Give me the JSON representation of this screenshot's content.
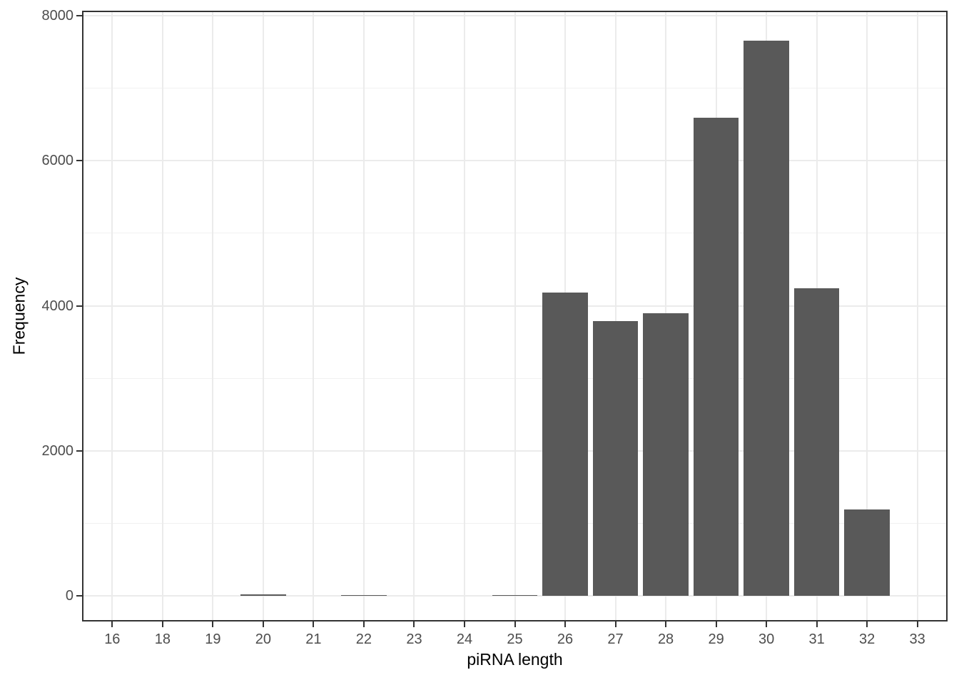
{
  "chart_data": {
    "type": "bar",
    "title": "",
    "xlabel": "piRNA length",
    "ylabel": "Frequency",
    "categories": [
      "16",
      "18",
      "19",
      "20",
      "21",
      "22",
      "23",
      "24",
      "25",
      "26",
      "27",
      "28",
      "29",
      "30",
      "31",
      "32",
      "33"
    ],
    "values": [
      0,
      0,
      0,
      17,
      0,
      12,
      0,
      0,
      13,
      4180,
      3790,
      3900,
      6590,
      7660,
      4240,
      1190,
      0
    ],
    "ylim": [
      0,
      8000
    ],
    "yticks": [
      0,
      2000,
      4000,
      6000,
      8000
    ],
    "yticks_minor": [
      1000,
      3000,
      5000,
      7000
    ],
    "grid": "major and minor horizontal, major vertical at category centers",
    "legend_position": "none",
    "bar_width_ratio": 0.9,
    "colors": {
      "bar_fill": "#595959",
      "panel_background": "#ffffff",
      "panel_border": "#333333",
      "grid_major": "#ebebeb",
      "grid_minor": "#f1f1f1",
      "tick_mark": "#333333",
      "tick_label": "#4d4d4d",
      "axis_title": "#000000"
    }
  }
}
